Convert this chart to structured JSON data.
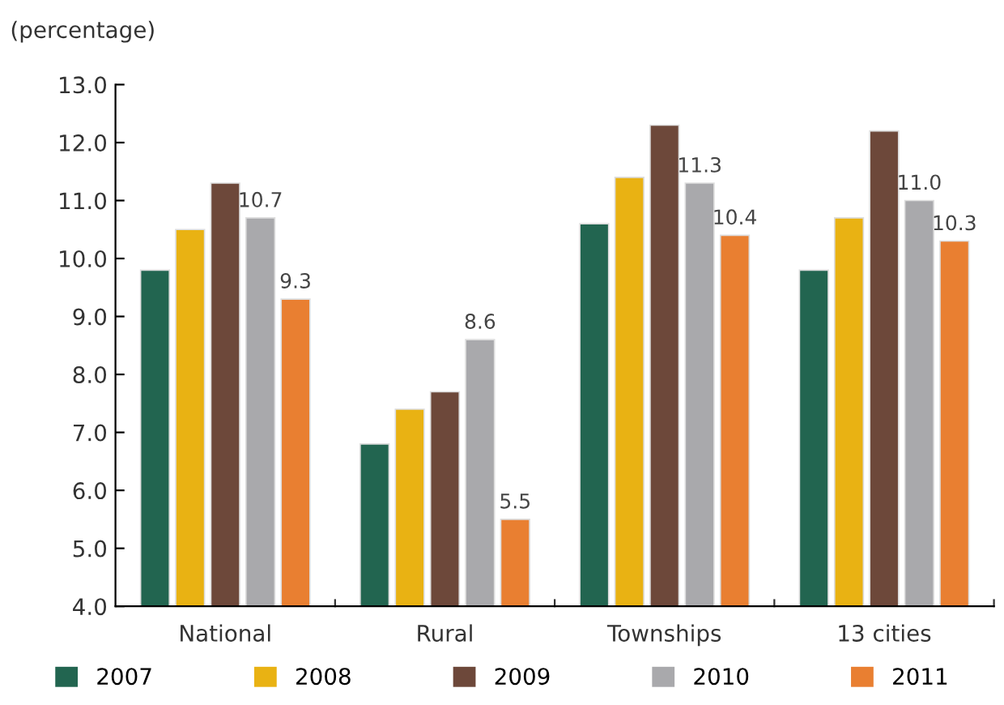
{
  "chart_data": {
    "type": "bar",
    "ylabel": "(percentage)",
    "categories": [
      "National",
      "Rural",
      "Townships",
      "13 cities"
    ],
    "series": [
      {
        "name": "2007",
        "color": "#226550",
        "values": [
          9.8,
          6.8,
          10.6,
          9.8
        ]
      },
      {
        "name": "2008",
        "color": "#e9b213",
        "values": [
          10.5,
          7.4,
          11.4,
          10.7
        ]
      },
      {
        "name": "2009",
        "color": "#6d483a",
        "values": [
          11.3,
          7.7,
          12.3,
          12.2
        ]
      },
      {
        "name": "2010",
        "color": "#a9a9ac",
        "values": [
          10.7,
          8.6,
          11.3,
          11.0
        ],
        "value_labels": [
          "10.7",
          "8.6",
          "11.3",
          "11.0"
        ]
      },
      {
        "name": "2011",
        "color": "#e97f31",
        "values": [
          9.3,
          5.5,
          10.4,
          10.3
        ],
        "value_labels": [
          "9.3",
          "5.5",
          "10.4",
          "10.3"
        ]
      }
    ],
    "ylim": [
      4.0,
      13.0
    ],
    "yticks": [
      {
        "value": 4,
        "label": "4.0"
      },
      {
        "value": 5,
        "label": "5.0"
      },
      {
        "value": 6,
        "label": "6.0"
      },
      {
        "value": 7,
        "label": "7.0"
      },
      {
        "value": 8,
        "label": "8.0"
      },
      {
        "value": 9,
        "label": "9.0"
      },
      {
        "value": 10,
        "label": "10.0"
      },
      {
        "value": 11,
        "label": "11.0"
      },
      {
        "value": 12,
        "label": "12.0"
      },
      {
        "value": 13,
        "label": "13.0"
      }
    ],
    "grid": false,
    "legend": "bottom"
  }
}
